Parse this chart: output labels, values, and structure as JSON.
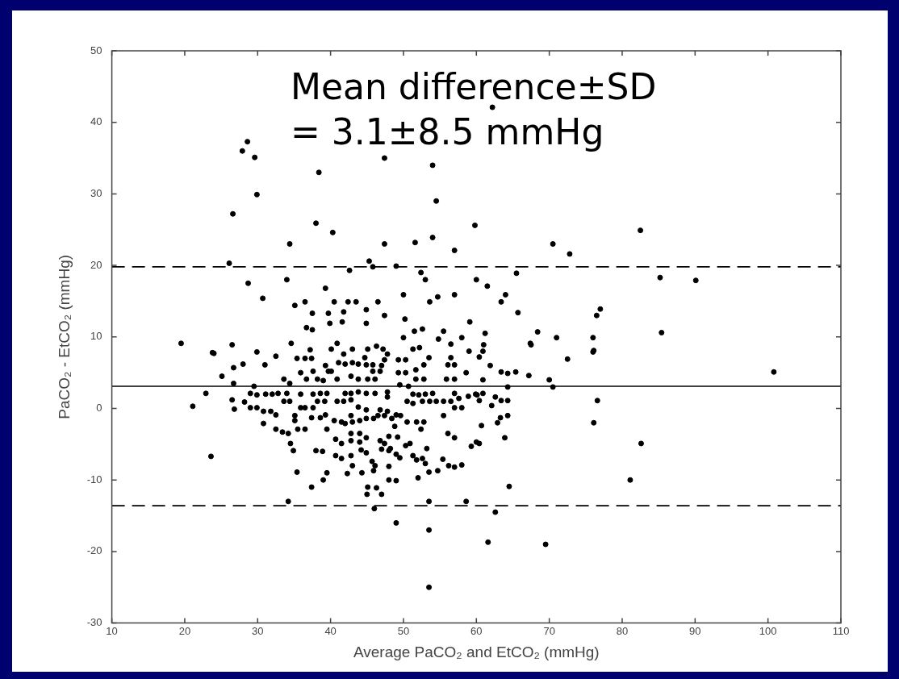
{
  "chart_data": {
    "type": "scatter",
    "xlabel": "Average PaCO₂ and EtCO₂ (mmHg)",
    "ylabel": "PaCO₂ - EtCO₂ (mmHg)",
    "annotations": [
      "Mean difference±SD\n= 3.1±8.5 mmHg"
    ],
    "xlim": [
      10,
      110
    ],
    "xticks": [
      10,
      20,
      30,
      40,
      50,
      60,
      70,
      80,
      90,
      100,
      110
    ],
    "ylim": [
      -30,
      50
    ],
    "yticks": [
      -30,
      -20,
      -10,
      0,
      10,
      20,
      30,
      40,
      50
    ],
    "marker": "circle",
    "legend": false,
    "ref_lines": [
      {
        "axis": "y",
        "value": 3.1,
        "color": "#000000",
        "line_style": "solid"
      },
      {
        "axis": "y",
        "value": 19.8,
        "color": "#000000",
        "line_style": "dashed"
      },
      {
        "axis": "y",
        "value": -13.6,
        "color": "#000000",
        "line_style": "dashed"
      }
    ],
    "series": [
      {
        "color": "#000000",
        "x": [
          28.6,
          27.9,
          29.6,
          38.4,
          47.4,
          54.0,
          29.9,
          26.6,
          54.5,
          38.0,
          40.3,
          34.4,
          47.4,
          51.6,
          54.0,
          57.0,
          59.8,
          26.1,
          45.3,
          45.8,
          49.0,
          42.6,
          52.4,
          53.0,
          60.0,
          28.7,
          34.0,
          30.7,
          39.3,
          35.1,
          36.5,
          40.5,
          42.4,
          43.5,
          46.5,
          50.0,
          53.6,
          54.7,
          57.0,
          59.1,
          37.5,
          39.7,
          41.8,
          44.9,
          47.4,
          50.2,
          39.9,
          41.6,
          44.9,
          36.7,
          37.5,
          51.5,
          52.6,
          55.5,
          19.5,
          26.5,
          24.0,
          29.9,
          34.6,
          37.2,
          50.0,
          54.8,
          58.0,
          62.2,
          82.5,
          70.5,
          72.8,
          65.5,
          61.5,
          85.2,
          90.1,
          64.0,
          63.4,
          65.7,
          77.0,
          76.5,
          68.4,
          67.5,
          71.0,
          76.0,
          76.0,
          85.4,
          61.2,
          61.0,
          72.5,
          60.4,
          60.9,
          67.4,
          76.1,
          61.9,
          63.4,
          64.3,
          65.4,
          67.2,
          70.0,
          70.5,
          100.8,
          60.9,
          64.3,
          59.9,
          60.9,
          60.4,
          62.1,
          62.6,
          63.4,
          64.3,
          76.6,
          60.7,
          62.9,
          63.3,
          64.3,
          76.1,
          63.9,
          60.4,
          82.6,
          81.1,
          64.5,
          62.6,
          61.6,
          69.5,
          23.8,
          25.1,
          26.7,
          28.0,
          31.0,
          32.5,
          26.7,
          29.5,
          22.9,
          21.1,
          26.5,
          26.8,
          28.2,
          29.0,
          29.9,
          31.1,
          32.0,
          29.0,
          29.9,
          30.8,
          31.8,
          30.8,
          32.5,
          32.5,
          33.4,
          34.2,
          34.5,
          34.9,
          35.4,
          23.6,
          34.2,
          37.4,
          39.0,
          39.5,
          38.0,
          38.9,
          35.5,
          36.5,
          35.1,
          33.6,
          34.4,
          35.4,
          36.5,
          37.4,
          35.9,
          37.6,
          35.9,
          37.6,
          36.5,
          37.6,
          37.4,
          38.6,
          39.7,
          40.9,
          40.9,
          41.8,
          42.8,
          39.3,
          40.5,
          41.5,
          39.5,
          40.7,
          41.5,
          42.8,
          44.0,
          44.9,
          40.7,
          41.5,
          42.8,
          43.0,
          44.2,
          44.9,
          42.3,
          44.3,
          45.7,
          46.1,
          45.9,
          45.1,
          46.3,
          47.0,
          45.0,
          46.0,
          48.0,
          49.0,
          48.0,
          49.0,
          49.0,
          49.5,
          47.0,
          48.0,
          46.8,
          48.0,
          49.2,
          48.8,
          46.8,
          47.8,
          49.0,
          49.6,
          50.3,
          50.9,
          51.3,
          51.8,
          52.6,
          53.0,
          52.0,
          53.5,
          54.7,
          53.5,
          53.5,
          53.5,
          58.6,
          53.2,
          55.4,
          56.2,
          57.0,
          58.0,
          56.1,
          57.0,
          59.3,
          60.0,
          50.5,
          51.8,
          52.8,
          52.4,
          50.5,
          51.3,
          52.6,
          53.6,
          54.5,
          55.5,
          56.5,
          57.0,
          58.0,
          55.5,
          51.3,
          52.1,
          53.0,
          54.0,
          57.0,
          57.6,
          58.9,
          60.1,
          51.7,
          52.8,
          55.9,
          57.0,
          51.7,
          52.8,
          56.1,
          57.0,
          53.5,
          56.5,
          51.3,
          52.2,
          56.5,
          59.0,
          58.6,
          49.3,
          50.3,
          49.3,
          50.3,
          49.5,
          50.7,
          47.8,
          47.8,
          46.3,
          47.2,
          47.8,
          47.4,
          47.0,
          46.8,
          45.1,
          44.9,
          45.8,
          45.8,
          43.0,
          44.7,
          43.8,
          41.1,
          42.0,
          43.0,
          41.8,
          42.8,
          43.8,
          45.1,
          46.1,
          42.0,
          42.8,
          43.8,
          44.9,
          46.1,
          43.8,
          44.9,
          42.8,
          44.0,
          44.9,
          42.0,
          43.0,
          45.9,
          46.5,
          47.4,
          48.4,
          47.4,
          48.2,
          44.0,
          42.8,
          38.2,
          39.2,
          39.5,
          38.6,
          35.9,
          35.1,
          33.6,
          34.4,
          32.8,
          34.0,
          38.2,
          39.0,
          36.7,
          39.3,
          40.1,
          40.1,
          40.9
        ],
        "values": [
          37.3,
          36.0,
          35.1,
          33.0,
          35.0,
          34.0,
          29.9,
          27.2,
          29.0,
          25.9,
          24.6,
          23.0,
          23.0,
          23.2,
          23.9,
          22.1,
          25.6,
          20.3,
          20.6,
          19.8,
          19.9,
          19.3,
          19.0,
          18.0,
          18.0,
          17.5,
          18.0,
          15.4,
          16.8,
          14.4,
          14.9,
          14.9,
          14.9,
          14.9,
          14.9,
          15.9,
          14.9,
          15.6,
          15.9,
          12.1,
          13.3,
          13.3,
          13.5,
          13.8,
          13.0,
          12.5,
          11.9,
          12.1,
          11.9,
          11.3,
          11.0,
          10.8,
          11.1,
          10.8,
          9.1,
          8.9,
          7.7,
          7.9,
          9.1,
          8.2,
          9.9,
          9.7,
          9.9,
          42.1,
          24.9,
          23.0,
          21.6,
          18.9,
          17.1,
          18.3,
          17.9,
          15.9,
          14.9,
          13.4,
          13.9,
          13.0,
          10.7,
          8.9,
          9.9,
          9.9,
          7.9,
          10.6,
          10.5,
          8.9,
          6.9,
          7.2,
          8.0,
          9.1,
          8.1,
          6.0,
          5.1,
          4.9,
          5.1,
          4.6,
          4.0,
          3.0,
          5.1,
          4.0,
          3.0,
          2.0,
          2.1,
          1.1,
          0.4,
          1.6,
          1.1,
          1.1,
          1.1,
          -2.4,
          -2.0,
          -1.3,
          -1.0,
          -2.0,
          -4.1,
          -4.9,
          -4.9,
          -10.0,
          -10.9,
          -14.5,
          -18.7,
          -19.0,
          7.8,
          4.5,
          5.7,
          6.2,
          6.1,
          7.3,
          3.5,
          3.1,
          2.1,
          0.3,
          1.2,
          -0.1,
          0.9,
          2.1,
          1.9,
          2.0,
          2.0,
          0.1,
          0.1,
          -0.4,
          -0.4,
          -2.1,
          -0.9,
          -2.9,
          -3.3,
          -3.5,
          -4.9,
          -5.9,
          -8.9,
          -6.7,
          -13.0,
          -11.0,
          -10.0,
          -9.0,
          -5.9,
          -6.0,
          -2.9,
          -2.9,
          -1.7,
          4.1,
          3.5,
          7.0,
          7.0,
          7.0,
          5.0,
          5.2,
          2.0,
          2.0,
          0.1,
          0.1,
          -1.3,
          -1.3,
          5.2,
          4.1,
          1.0,
          1.0,
          1.2,
          -0.9,
          -1.7,
          -1.9,
          -2.9,
          -4.3,
          -4.9,
          -4.5,
          -4.7,
          -4.1,
          -6.6,
          -7.0,
          -6.6,
          -8.0,
          -5.8,
          -6.2,
          -9.1,
          -9.0,
          -7.4,
          -8.0,
          -8.7,
          -11.0,
          -11.1,
          -12.0,
          -12.0,
          -14.0,
          -10.0,
          -10.1,
          -8.1,
          -16.0,
          -6.4,
          -6.9,
          -5.7,
          -5.9,
          -4.5,
          -3.9,
          -4.0,
          -2.5,
          -0.2,
          -0.4,
          -0.9,
          -1.0,
          -5.2,
          -4.9,
          -6.6,
          -7.2,
          -7.0,
          -7.7,
          -9.7,
          -8.9,
          -8.7,
          -13.0,
          -17.0,
          -25.0,
          -13.0,
          -5.6,
          -7.1,
          -8.0,
          -8.2,
          -7.9,
          -3.5,
          -4.1,
          -5.3,
          -4.7,
          -1.9,
          -1.9,
          -1.9,
          -2.9,
          1.0,
          0.7,
          1.0,
          1.0,
          1.0,
          1.0,
          1.0,
          0.1,
          0.1,
          -1.0,
          2.0,
          1.9,
          2.0,
          2.1,
          2.1,
          1.4,
          1.7,
          1.9,
          4.1,
          4.1,
          4.1,
          4.1,
          5.4,
          6.1,
          6.1,
          6.1,
          7.1,
          7.1,
          8.3,
          8.5,
          9.0,
          8.0,
          5.0,
          6.8,
          6.8,
          5.0,
          5.0,
          3.3,
          3.1,
          2.3,
          1.6,
          8.7,
          8.3,
          7.6,
          6.8,
          6.0,
          5.2,
          8.3,
          6.1,
          6.1,
          5.2,
          8.3,
          7.1,
          6.2,
          6.4,
          6.2,
          6.4,
          7.6,
          4.5,
          4.1,
          4.1,
          4.1,
          2.1,
          2.1,
          2.3,
          2.1,
          2.1,
          0.2,
          -0.2,
          -1.0,
          -1.7,
          -1.4,
          -2.1,
          -1.9,
          -1.4,
          -1.0,
          -1.0,
          -1.4,
          -4.9,
          -5.6,
          -3.5,
          -3.5,
          1.0,
          1.0,
          2.1,
          2.1,
          0.1,
          -1.0,
          1.0,
          1.0,
          2.1,
          2.1,
          4.1,
          3.9,
          4.1,
          6.0,
          5.2,
          8.3,
          9.1
        ]
      }
    ]
  }
}
